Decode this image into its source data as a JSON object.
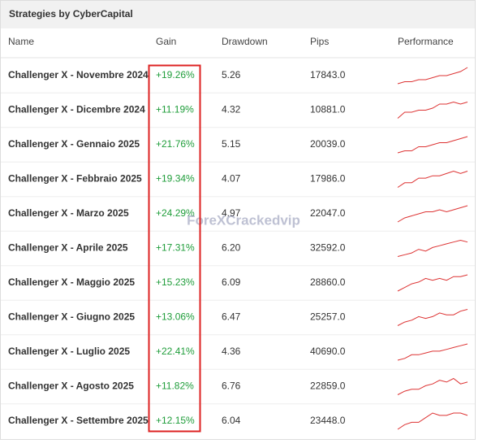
{
  "header": {
    "title": "Strategies by CyberCapital"
  },
  "table": {
    "columns": [
      "Name",
      "Gain",
      "Drawdown",
      "Pips",
      "Performance"
    ],
    "rows": [
      [
        "Challenger X - Novembre 2024",
        "+19.26%",
        "5.26",
        "17843.0"
      ],
      [
        "Challenger X - Dicembre 2024",
        "+11.19%",
        "4.32",
        "10881.0"
      ],
      [
        "Challenger X - Gennaio 2025",
        "+21.76%",
        "5.15",
        "20039.0"
      ],
      [
        "Challenger X - Febbraio 2025",
        "+19.34%",
        "4.07",
        "17986.0"
      ],
      [
        "Challenger X - Marzo 2025",
        "+24.29%",
        "4.97",
        "22047.0"
      ],
      [
        "Challenger X - Aprile 2025",
        "+17.31%",
        "6.20",
        "32592.0"
      ],
      [
        "Challenger X - Maggio 2025",
        "+15.23%",
        "6.09",
        "28860.0"
      ],
      [
        "Challenger X - Giugno 2025",
        "+13.06%",
        "6.47",
        "25257.0"
      ],
      [
        "Challenger X - Luglio 2025",
        "+22.41%",
        "4.36",
        "40690.0"
      ],
      [
        "Challenger X - Agosto 2025",
        "+11.82%",
        "6.76",
        "22859.0"
      ],
      [
        "Challenger X - Settembre 2025",
        "+12.15%",
        "6.04",
        "23448.0"
      ]
    ],
    "performance": [
      [
        0,
        1,
        1,
        2,
        2,
        3,
        4,
        4,
        5,
        6,
        8
      ],
      [
        0,
        3,
        3,
        4,
        4,
        5,
        7,
        7,
        8,
        7,
        8
      ],
      [
        0,
        1,
        1,
        3,
        3,
        4,
        5,
        5,
        6,
        7,
        8
      ],
      [
        0,
        2,
        2,
        4,
        4,
        5,
        5,
        6,
        7,
        6,
        7
      ],
      [
        0,
        2,
        3,
        4,
        5,
        5,
        6,
        5,
        6,
        7,
        8
      ],
      [
        0,
        1,
        2,
        4,
        3,
        5,
        6,
        7,
        8,
        9,
        8
      ],
      [
        0,
        2,
        4,
        5,
        7,
        6,
        7,
        6,
        8,
        8,
        9
      ],
      [
        0,
        2,
        3,
        5,
        4,
        5,
        7,
        6,
        6,
        8,
        9
      ],
      [
        0,
        1,
        3,
        3,
        4,
        5,
        5,
        6,
        7,
        8,
        9
      ],
      [
        0,
        2,
        3,
        3,
        5,
        6,
        8,
        7,
        9,
        6,
        7
      ],
      [
        0,
        2,
        3,
        3,
        5,
        7,
        6,
        6,
        7,
        7,
        6
      ]
    ]
  },
  "watermark": "ForeXCrackedvip"
}
